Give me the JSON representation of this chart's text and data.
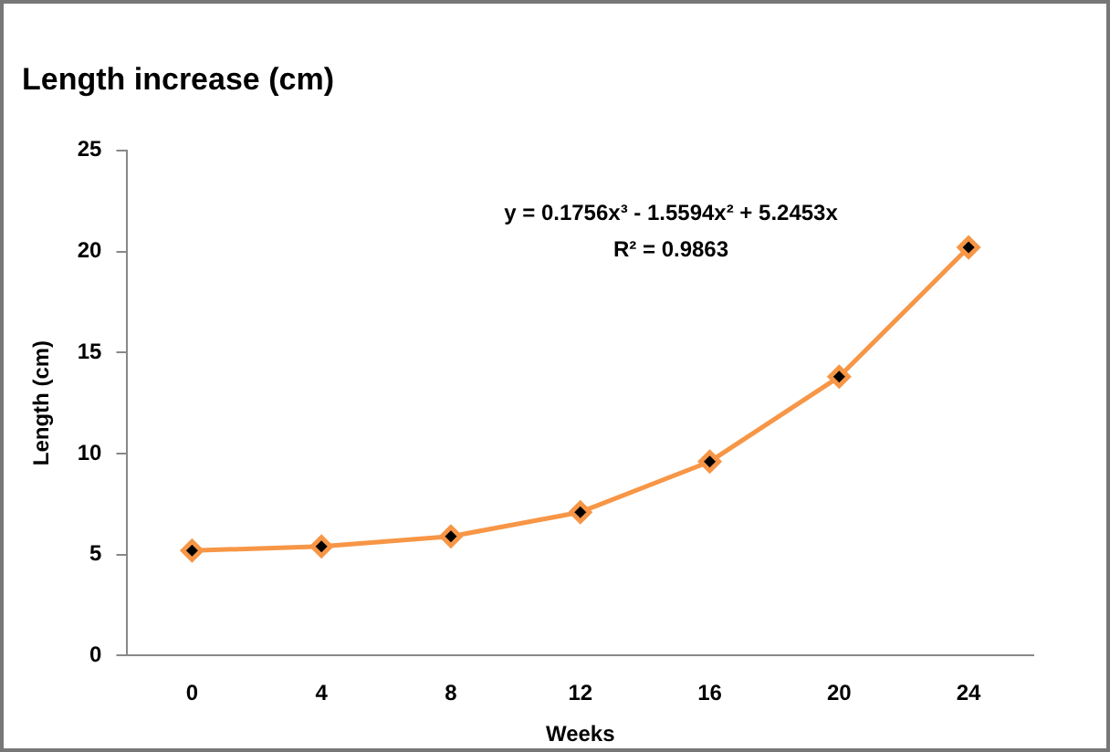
{
  "chart_data": {
    "type": "line",
    "title": "Length increase (cm)",
    "xlabel": "Weeks",
    "ylabel": "Length (cm)",
    "categories": [
      "0",
      "4",
      "8",
      "12",
      "16",
      "20",
      "24"
    ],
    "series": [
      {
        "color": "#f79646",
        "values": [
          5.2,
          5.4,
          5.9,
          7.1,
          9.6,
          13.8,
          20.2
        ]
      }
    ],
    "ylim": [
      0,
      25
    ],
    "yticks": [
      0,
      5,
      10,
      15,
      20,
      25
    ],
    "grid": false,
    "legend": false,
    "marker": "diamond",
    "line_style": "solid",
    "annotations": [
      "y = 0.1756x³ - 1.5594x² + 5.2453x",
      "R² = 0.9863"
    ]
  }
}
